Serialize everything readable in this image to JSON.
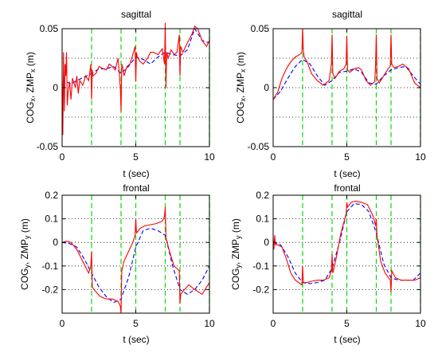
{
  "figure": {
    "background": "#ffffff"
  },
  "chart_data": [
    {
      "type": "line",
      "title": "sagittal",
      "xlabel": "t (sec)",
      "ylabel_main": "COG",
      "ylabel_sub1": "x",
      "ylabel_mid": ", ZMP",
      "ylabel_sub2": "x",
      "ylabel_unit": " (m)",
      "xlim": [
        0,
        10
      ],
      "ylim": [
        -0.05,
        0.05
      ],
      "xticks": [
        0,
        5,
        10
      ],
      "xtick_labels": [
        "0",
        "5",
        "10"
      ],
      "yticks": [
        -0.05,
        0,
        0.05
      ],
      "ytick_labels": [
        "-0.05",
        "0",
        "0.05"
      ],
      "hgrid": [
        -0.025,
        0,
        0.025,
        0.05
      ],
      "vlines": [
        2,
        4,
        5,
        7,
        8,
        10
      ],
      "vline_color": "#00dd00",
      "series": [
        {
          "color": "#0000ff",
          "style": "dashed",
          "x": [
            0,
            0.3,
            0.6,
            1,
            1.5,
            2,
            2.5,
            3,
            3.5,
            4,
            4.5,
            5,
            5.5,
            6,
            6.5,
            7,
            7.5,
            8,
            8.5,
            9,
            9.5,
            10
          ],
          "y": [
            0.002,
            0.005,
            0.003,
            0.006,
            0.009,
            0.012,
            0.016,
            0.016,
            0.018,
            0.012,
            0.018,
            0.026,
            0.024,
            0.02,
            0.026,
            0.03,
            0.028,
            0.027,
            0.032,
            0.05,
            0.04,
            0.038
          ]
        },
        {
          "color": "#ff0000",
          "style": "solid",
          "x": [
            0,
            0.05,
            0.1,
            0.15,
            0.2,
            0.25,
            0.3,
            0.35,
            0.4,
            0.5,
            0.6,
            0.7,
            0.9,
            1.0,
            1.1,
            1.2,
            1.4,
            1.6,
            1.8,
            1.95,
            2.0,
            2.05,
            2.1,
            2.3,
            2.5,
            2.8,
            3.0,
            3.2,
            3.4,
            3.6,
            3.8,
            3.95,
            4.0,
            4.05,
            4.1,
            4.2,
            4.4,
            4.6,
            4.8,
            4.95,
            5.0,
            5.05,
            5.1,
            5.3,
            5.5,
            5.8,
            6.0,
            6.2,
            6.5,
            6.8,
            6.95,
            7.0,
            7.05,
            7.1,
            7.2,
            7.4,
            7.6,
            7.8,
            7.95,
            8.0,
            8.05,
            8.2,
            8.5,
            8.8,
            9.0,
            9.2,
            9.5,
            9.8,
            10
          ],
          "y": [
            0.01,
            -0.04,
            0.03,
            -0.02,
            0.02,
            0.01,
            0.03,
            -0.015,
            -0.005,
            0.005,
            -0.01,
            0.008,
            0.0,
            0.01,
            -0.005,
            0.006,
            0.002,
            0.01,
            0.006,
            0.02,
            -0.01,
            0.015,
            0.01,
            0.012,
            0.018,
            0.016,
            0.015,
            0.02,
            0.018,
            0.015,
            0.025,
            0.0,
            -0.02,
            0.02,
            0.018,
            0.01,
            0.018,
            0.02,
            0.028,
            0.035,
            0.005,
            0.03,
            0.026,
            0.022,
            0.02,
            0.025,
            0.03,
            0.03,
            0.028,
            0.033,
            0.02,
            0.055,
            0.0,
            0.03,
            0.025,
            0.032,
            0.028,
            0.03,
            0.045,
            0.01,
            0.035,
            0.03,
            0.038,
            0.045,
            0.052,
            0.05,
            0.04,
            0.035,
            0.04
          ]
        }
      ]
    },
    {
      "type": "line",
      "title": "sagittal",
      "xlabel": "t (sec)",
      "ylabel_main": "COG",
      "ylabel_sub1": "x",
      "ylabel_mid": ", ZMP",
      "ylabel_sub2": "x",
      "ylabel_unit": " (m)",
      "xlim": [
        0,
        10
      ],
      "ylim": [
        -0.05,
        0.05
      ],
      "xticks": [
        0,
        5,
        10
      ],
      "xtick_labels": [
        "0",
        "5",
        "10"
      ],
      "yticks": [
        -0.05,
        0,
        0.05
      ],
      "ytick_labels": [
        "-0.05",
        "0",
        "0.05"
      ],
      "hgrid": [
        -0.025,
        0,
        0.025,
        0.05
      ],
      "vlines": [
        2,
        4,
        5,
        7,
        8,
        10
      ],
      "vline_color": "#00dd00",
      "series": [
        {
          "color": "#0000ff",
          "style": "dashed",
          "x": [
            0,
            0.5,
            1,
            1.5,
            2,
            2.5,
            3,
            3.5,
            4,
            4.5,
            5,
            5.5,
            6,
            6.5,
            7,
            7.5,
            8,
            8.5,
            9,
            9.5,
            10
          ],
          "y": [
            -0.01,
            -0.003,
            0.008,
            0.018,
            0.024,
            0.02,
            0.01,
            0.002,
            0.006,
            0.013,
            0.014,
            0.016,
            0.013,
            0.004,
            0.003,
            0.01,
            0.015,
            0.017,
            0.018,
            0.01,
            0.003
          ]
        },
        {
          "color": "#ff0000",
          "style": "solid",
          "x": [
            0,
            0.3,
            0.6,
            0.9,
            1.2,
            1.5,
            1.8,
            1.95,
            2.0,
            2.05,
            2.1,
            2.3,
            2.6,
            3.0,
            3.4,
            3.8,
            3.95,
            4.0,
            4.05,
            4.2,
            4.5,
            4.8,
            4.95,
            5.0,
            5.05,
            5.2,
            5.5,
            5.8,
            6.0,
            6.3,
            6.6,
            6.9,
            6.95,
            7.0,
            7.05,
            7.2,
            7.5,
            7.8,
            7.95,
            8.0,
            8.05,
            8.2,
            8.5,
            8.8,
            9.2,
            9.6,
            10
          ],
          "y": [
            -0.01,
            -0.004,
            0.008,
            0.016,
            0.022,
            0.026,
            0.028,
            0.03,
            0.05,
            0.032,
            0.026,
            0.022,
            0.012,
            0.006,
            0.002,
            0.006,
            0.02,
            0.045,
            0.012,
            0.008,
            0.014,
            0.016,
            0.02,
            0.044,
            0.015,
            0.013,
            0.016,
            0.017,
            0.015,
            0.006,
            0.002,
            0.005,
            0.02,
            0.045,
            0.008,
            0.004,
            0.01,
            0.016,
            0.018,
            0.045,
            0.02,
            0.017,
            0.018,
            0.02,
            0.016,
            0.004,
            0.0
          ]
        }
      ]
    },
    {
      "type": "line",
      "title": "frontal",
      "xlabel": "t (sec)",
      "ylabel_main": "COG",
      "ylabel_sub1": "y",
      "ylabel_mid": ", ZMP",
      "ylabel_sub2": "y",
      "ylabel_unit": " (m)",
      "xlim": [
        0,
        10
      ],
      "ylim": [
        -0.3,
        0.2
      ],
      "xticks": [
        0,
        5,
        10
      ],
      "xtick_labels": [
        "0",
        "5",
        "10"
      ],
      "yticks": [
        -0.2,
        -0.1,
        0,
        0.1,
        0.2
      ],
      "ytick_labels": [
        "-0.2",
        "-0.1",
        "0",
        "0.1",
        "0.2"
      ],
      "hgrid": [
        -0.2,
        -0.1,
        0,
        0.1,
        0.2
      ],
      "vlines": [
        2,
        4,
        5,
        7,
        8,
        10
      ],
      "vline_color": "#00dd00",
      "series": [
        {
          "color": "#0000ff",
          "style": "dashed",
          "x": [
            0,
            0.5,
            1,
            1.5,
            2,
            2.5,
            3,
            3.5,
            4,
            4.5,
            5,
            5.5,
            6,
            6.5,
            7,
            7.5,
            8,
            8.5,
            9,
            9.5,
            10
          ],
          "y": [
            0,
            -0.005,
            -0.02,
            -0.07,
            -0.13,
            -0.19,
            -0.23,
            -0.255,
            -0.24,
            -0.15,
            -0.02,
            0.05,
            0.06,
            0.05,
            0.03,
            -0.1,
            -0.2,
            -0.22,
            -0.2,
            -0.16,
            -0.1
          ]
        },
        {
          "color": "#ff0000",
          "style": "solid",
          "x": [
            0,
            0.3,
            0.6,
            1.0,
            1.4,
            1.8,
            1.95,
            2.0,
            2.05,
            2.3,
            2.6,
            3.0,
            3.4,
            3.8,
            3.95,
            4.0,
            4.05,
            4.2,
            4.5,
            4.8,
            4.95,
            5.0,
            5.05,
            5.3,
            5.6,
            6.0,
            6.4,
            6.8,
            6.95,
            7.0,
            7.05,
            7.3,
            7.6,
            7.95,
            8.0,
            8.05,
            8.3,
            8.6,
            9.0,
            9.5,
            10
          ],
          "y": [
            0,
            0.005,
            0.0,
            -0.03,
            -0.08,
            -0.13,
            -0.1,
            -0.04,
            -0.19,
            -0.21,
            -0.23,
            -0.24,
            -0.24,
            -0.25,
            -0.27,
            -0.3,
            -0.12,
            -0.08,
            -0.04,
            0.0,
            0.03,
            0.1,
            0.04,
            0.06,
            0.07,
            0.075,
            0.08,
            0.09,
            0.11,
            0.15,
            0.02,
            -0.04,
            -0.1,
            -0.12,
            -0.26,
            -0.22,
            -0.2,
            -0.18,
            -0.2,
            -0.22,
            -0.17
          ]
        }
      ]
    },
    {
      "type": "line",
      "title": "frontal",
      "xlabel": "t (sec)",
      "ylabel_main": "COG",
      "ylabel_sub1": "y",
      "ylabel_mid": ", ZMP",
      "ylabel_sub2": "y",
      "ylabel_unit": " (m)",
      "xlim": [
        0,
        10
      ],
      "ylim": [
        -0.3,
        0.2
      ],
      "xticks": [
        0,
        5,
        10
      ],
      "xtick_labels": [
        "0",
        "5",
        "10"
      ],
      "yticks": [
        -0.2,
        -0.1,
        0,
        0.1,
        0.2
      ],
      "ytick_labels": [
        "-0.2",
        "-0.1",
        "0",
        "0.1",
        "0.2"
      ],
      "hgrid": [
        -0.2,
        -0.1,
        0,
        0.1,
        0.2
      ],
      "vlines": [
        2,
        4,
        5,
        7,
        8,
        10
      ],
      "vline_color": "#00dd00",
      "series": [
        {
          "color": "#0000ff",
          "style": "dashed",
          "x": [
            0,
            0.5,
            1,
            1.5,
            2,
            2.5,
            3,
            3.5,
            4,
            4.5,
            5,
            5.5,
            6,
            6.5,
            7,
            7.5,
            8,
            8.5,
            9,
            9.5,
            10
          ],
          "y": [
            0,
            -0.01,
            -0.06,
            -0.13,
            -0.17,
            -0.175,
            -0.17,
            -0.16,
            -0.11,
            0.0,
            0.13,
            0.165,
            0.16,
            0.13,
            0.04,
            -0.09,
            -0.15,
            -0.16,
            -0.16,
            -0.16,
            -0.13
          ]
        },
        {
          "color": "#ff0000",
          "style": "solid",
          "x": [
            0,
            0.05,
            0.1,
            0.15,
            0.3,
            0.6,
            0.9,
            1.2,
            1.5,
            1.95,
            2.0,
            2.05,
            2.3,
            2.6,
            3.0,
            3.4,
            3.8,
            3.95,
            4.0,
            4.05,
            4.3,
            4.6,
            4.95,
            5.0,
            5.05,
            5.3,
            5.6,
            6.0,
            6.4,
            6.8,
            6.95,
            7.0,
            7.05,
            7.3,
            7.6,
            7.95,
            8.0,
            8.05,
            8.3,
            8.7,
            9.2,
            9.6,
            10
          ],
          "y": [
            0.02,
            -0.03,
            0.03,
            -0.01,
            -0.01,
            -0.02,
            -0.07,
            -0.13,
            -0.16,
            -0.18,
            -0.1,
            -0.17,
            -0.17,
            -0.165,
            -0.16,
            -0.16,
            -0.15,
            -0.12,
            -0.05,
            -0.13,
            -0.06,
            0.04,
            0.12,
            0.17,
            0.15,
            0.17,
            0.175,
            0.17,
            0.16,
            0.11,
            0.07,
            0.1,
            0.03,
            -0.08,
            -0.13,
            -0.16,
            -0.21,
            -0.12,
            -0.15,
            -0.16,
            -0.16,
            -0.16,
            -0.15
          ]
        }
      ]
    }
  ]
}
